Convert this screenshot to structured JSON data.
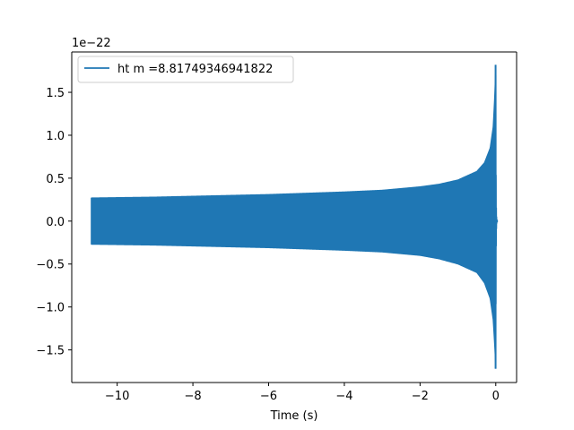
{
  "chart_data": {
    "type": "line",
    "title": "",
    "xlabel": "Time (s)",
    "ylabel": "",
    "offset_text": "1e−22",
    "xlim": [
      -11.2,
      0.55
    ],
    "ylim": [
      -1.88,
      1.97
    ],
    "xticks": [
      {
        "value": -10,
        "label": "−10"
      },
      {
        "value": -8,
        "label": "−8"
      },
      {
        "value": -6,
        "label": "−6"
      },
      {
        "value": -4,
        "label": "−4"
      },
      {
        "value": -2,
        "label": "−2"
      },
      {
        "value": 0,
        "label": "0"
      }
    ],
    "yticks": [
      {
        "value": -1.5,
        "label": "−1.5"
      },
      {
        "value": -1.0,
        "label": "−1.0"
      },
      {
        "value": -0.5,
        "label": "−0.5"
      },
      {
        "value": 0.0,
        "label": "0.0"
      },
      {
        "value": 0.5,
        "label": "0.5"
      },
      {
        "value": 1.0,
        "label": "1.0"
      },
      {
        "value": 1.5,
        "label": "1.5"
      }
    ],
    "series": [
      {
        "name": "ht m =8.81749346941822",
        "color": "#1f77b4",
        "t_start": -10.68,
        "t_merger": 0.0,
        "t_end": 0.05,
        "envelope_upper": [
          [
            -10.68,
            0.27
          ],
          [
            -9,
            0.28
          ],
          [
            -8,
            0.29
          ],
          [
            -6,
            0.31
          ],
          [
            -4,
            0.34
          ],
          [
            -3,
            0.36
          ],
          [
            -2,
            0.4
          ],
          [
            -1.5,
            0.43
          ],
          [
            -1,
            0.48
          ],
          [
            -0.5,
            0.58
          ],
          [
            -0.3,
            0.68
          ],
          [
            -0.15,
            0.85
          ],
          [
            -0.07,
            1.1
          ],
          [
            -0.03,
            1.45
          ],
          [
            0.0,
            1.82
          ]
        ],
        "envelope_lower": [
          [
            -10.68,
            -0.27
          ],
          [
            -9,
            -0.28
          ],
          [
            -8,
            -0.29
          ],
          [
            -6,
            -0.31
          ],
          [
            -4,
            -0.34
          ],
          [
            -3,
            -0.36
          ],
          [
            -2,
            -0.4
          ],
          [
            -1.5,
            -0.44
          ],
          [
            -1,
            -0.5
          ],
          [
            -0.5,
            -0.6
          ],
          [
            -0.3,
            -0.72
          ],
          [
            -0.15,
            -0.9
          ],
          [
            -0.07,
            -1.15
          ],
          [
            -0.03,
            -1.45
          ],
          [
            0.0,
            -1.72
          ]
        ]
      }
    ],
    "legend_position": "upper-left",
    "grid": false
  }
}
